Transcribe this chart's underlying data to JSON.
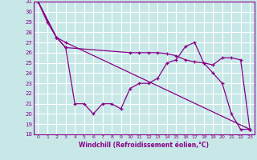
{
  "xlabel": "Windchill (Refroidissement éolien,°C)",
  "ylabel": "",
  "xlim": [
    -0.5,
    23.5
  ],
  "ylim": [
    18,
    31
  ],
  "yticks": [
    18,
    19,
    20,
    21,
    22,
    23,
    24,
    25,
    26,
    27,
    28,
    29,
    30,
    31
  ],
  "xticks": [
    0,
    1,
    2,
    3,
    4,
    5,
    6,
    7,
    8,
    9,
    10,
    11,
    12,
    13,
    14,
    15,
    16,
    17,
    18,
    19,
    20,
    21,
    22,
    23
  ],
  "bg_color": "#c8e8e8",
  "line_color": "#880088",
  "grid_color": "#ffffff",
  "line1_x": [
    0,
    1,
    2,
    3,
    4,
    5,
    6,
    7,
    8,
    9,
    10,
    11,
    12,
    13,
    14,
    15,
    16,
    17,
    18,
    19,
    20,
    21,
    22,
    23
  ],
  "line1_y": [
    31,
    29,
    27.5,
    26.5,
    21,
    21,
    20,
    21,
    21,
    20.5,
    22.5,
    23,
    23,
    23.5,
    25,
    25.3,
    26.6,
    27,
    25,
    24,
    23,
    20,
    18.5,
    18.5
  ],
  "line2_x": [
    0,
    2,
    3,
    23
  ],
  "line2_y": [
    31,
    27.5,
    27,
    18.5
  ],
  "line3_x": [
    0,
    2,
    3,
    10,
    11,
    12,
    13,
    14,
    15,
    16,
    17,
    18,
    19,
    20,
    21,
    22,
    23
  ],
  "line3_y": [
    31,
    27.5,
    26.5,
    26,
    26,
    26,
    26,
    25.9,
    25.7,
    25.3,
    25.1,
    25.0,
    24.8,
    25.5,
    25.5,
    25.3,
    18.5
  ]
}
